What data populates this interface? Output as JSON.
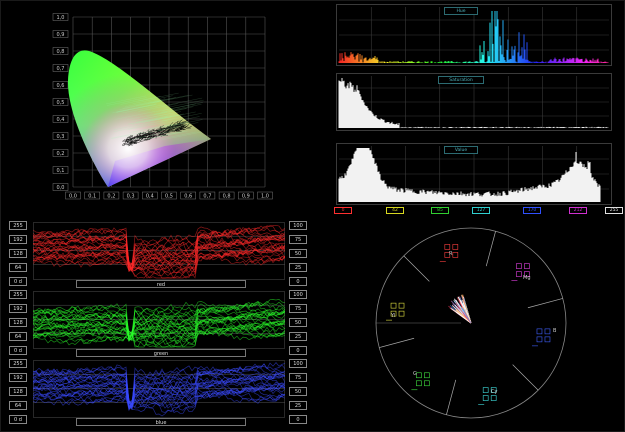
{
  "cie": {
    "ticks": [
      "0,0",
      "0,1",
      "0,2",
      "0,3",
      "0,4",
      "0,5",
      "0,6",
      "0,7",
      "0,8",
      "0,9",
      "1,0"
    ]
  },
  "histograms": {
    "hue_label": "Hue",
    "saturation_label": "Saturation",
    "value_label": "Value",
    "hue_ticks": [
      {
        "label": "0",
        "color": "#ff3030"
      },
      {
        "label": "42",
        "color": "#d8d820"
      },
      {
        "label": "85",
        "color": "#30d030"
      },
      {
        "label": "127",
        "color": "#30d0d0"
      },
      {
        "label": "170",
        "color": "#3050ff"
      },
      {
        "label": "212",
        "color": "#d030d0"
      },
      {
        "label": "255",
        "color": "#e0e0e0"
      }
    ]
  },
  "waveform": {
    "left_scale": [
      "255",
      "192",
      "128",
      "64",
      "0 d"
    ],
    "right_scale": [
      "100",
      "75",
      "50",
      "25",
      "0"
    ],
    "channels": [
      {
        "name": "red",
        "color": "#ff2a2a"
      },
      {
        "name": "green",
        "color": "#2aff2a"
      },
      {
        "name": "blue",
        "color": "#3a4aff"
      }
    ]
  },
  "vectorscope": {
    "labels": [
      "R",
      "Mg",
      "B",
      "Cy",
      "G",
      "Yl"
    ]
  },
  "colors": {
    "background": "#000000",
    "grid": "#4a4a4a",
    "text": "#cfcfcf"
  }
}
